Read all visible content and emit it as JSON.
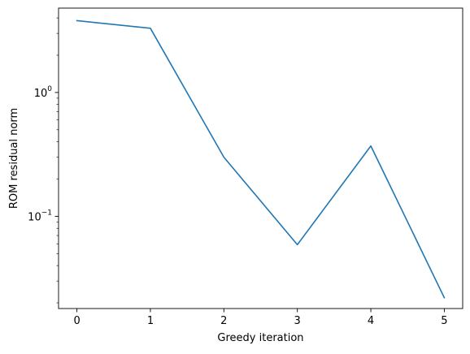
{
  "chart_data": {
    "type": "line",
    "title": "",
    "xlabel": "Greedy iteration",
    "ylabel": "ROM residual norm",
    "x": [
      0,
      1,
      2,
      3,
      4,
      5
    ],
    "series": [
      {
        "values": [
          3.8,
          3.3,
          0.3,
          0.059,
          0.37,
          0.022
        ],
        "color": "#1f77b4"
      }
    ],
    "xlim": [
      -0.25,
      5.25
    ],
    "ylim": [
      0.018,
      4.8
    ],
    "yscale": "log",
    "x_ticks": [
      "0",
      "1",
      "2",
      "3",
      "4",
      "5"
    ],
    "y_ticks": [
      {
        "base": "10",
        "exp": "0",
        "value": 1
      },
      {
        "base": "10",
        "exp": "−1",
        "value": 0.1
      }
    ],
    "grid": false,
    "legend": "none"
  }
}
